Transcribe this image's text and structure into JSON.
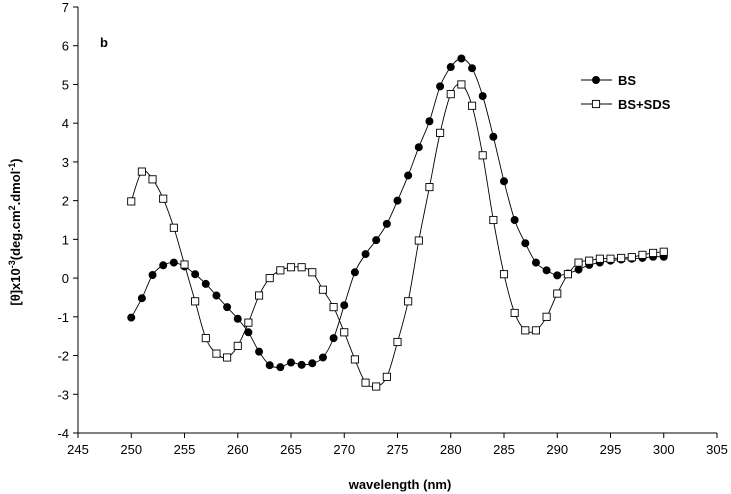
{
  "chart_data": {
    "type": "line",
    "panel_label": "b",
    "xlabel": "wavelength (nm)",
    "ylabel_parts": [
      "[θ]x10",
      "-3",
      "(deg.cm",
      "2",
      ".dmol",
      "-1",
      ")"
    ],
    "xlim": [
      245,
      305
    ],
    "ylim": [
      -4,
      7
    ],
    "xticks": [
      245,
      250,
      255,
      260,
      265,
      270,
      275,
      280,
      285,
      290,
      295,
      300,
      305
    ],
    "yticks": [
      -4,
      -3,
      -2,
      -1,
      0,
      1,
      2,
      3,
      4,
      5,
      6,
      7
    ],
    "grid": false,
    "legend_position": "top-right",
    "series": [
      {
        "name": "BS",
        "marker": "filled-circle",
        "color": "#000000",
        "x": [
          250,
          251,
          252,
          253,
          254,
          255,
          256,
          257,
          258,
          259,
          260,
          261,
          262,
          263,
          264,
          265,
          266,
          267,
          268,
          269,
          270,
          271,
          272,
          273,
          274,
          275,
          276,
          277,
          278,
          279,
          280,
          281,
          282,
          283,
          284,
          285,
          286,
          287,
          288,
          289,
          290,
          291,
          292,
          293,
          294,
          295,
          296,
          297,
          298,
          299,
          300
        ],
        "y": [
          -1.02,
          -0.52,
          0.08,
          0.33,
          0.4,
          0.3,
          0.1,
          -0.15,
          -0.45,
          -0.75,
          -1.05,
          -1.4,
          -1.9,
          -2.25,
          -2.3,
          -2.18,
          -2.24,
          -2.2,
          -2.05,
          -1.55,
          -0.7,
          0.15,
          0.62,
          0.98,
          1.4,
          2.0,
          2.65,
          3.38,
          4.05,
          4.95,
          5.45,
          5.67,
          5.42,
          4.7,
          3.65,
          2.5,
          1.5,
          0.9,
          0.4,
          0.2,
          0.07,
          0.12,
          0.22,
          0.34,
          0.4,
          0.45,
          0.48,
          0.5,
          0.52,
          0.55,
          0.55
        ]
      },
      {
        "name": "BS+SDS",
        "marker": "open-square",
        "color": "#000000",
        "x": [
          250,
          251,
          252,
          253,
          254,
          255,
          256,
          257,
          258,
          259,
          260,
          261,
          262,
          263,
          264,
          265,
          266,
          267,
          268,
          269,
          270,
          271,
          272,
          273,
          274,
          275,
          276,
          277,
          278,
          279,
          280,
          281,
          282,
          283,
          284,
          285,
          286,
          287,
          288,
          289,
          290,
          291,
          292,
          293,
          294,
          295,
          296,
          297,
          298,
          299,
          300
        ],
        "y": [
          1.98,
          2.75,
          2.55,
          2.05,
          1.3,
          0.35,
          -0.6,
          -1.55,
          -1.95,
          -2.05,
          -1.75,
          -1.15,
          -0.45,
          0.0,
          0.2,
          0.28,
          0.28,
          0.15,
          -0.3,
          -0.75,
          -1.4,
          -2.1,
          -2.7,
          -2.8,
          -2.55,
          -1.65,
          -0.6,
          0.97,
          2.35,
          3.75,
          4.75,
          5.0,
          4.45,
          3.17,
          1.5,
          0.1,
          -0.9,
          -1.35,
          -1.35,
          -1.0,
          -0.4,
          0.1,
          0.4,
          0.45,
          0.5,
          0.5,
          0.52,
          0.54,
          0.6,
          0.65,
          0.68
        ]
      }
    ]
  }
}
